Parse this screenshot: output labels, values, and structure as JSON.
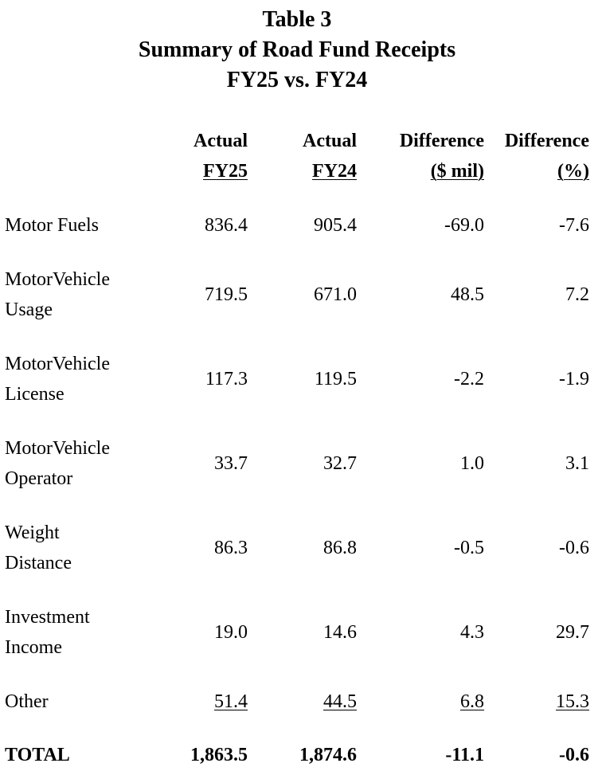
{
  "title": {
    "line1": "Table 3",
    "line2": "Summary of Road Fund Receipts",
    "line3": "FY25 vs. FY24"
  },
  "columns": [
    {
      "line1": "Actual",
      "line2": "FY25"
    },
    {
      "line1": "Actual",
      "line2": "FY24"
    },
    {
      "line1": "Difference",
      "line2": "($ mil)"
    },
    {
      "line1": "Difference",
      "line2": "(%)"
    }
  ],
  "rows": [
    {
      "label": [
        "Motor Fuels"
      ],
      "values": [
        "836.4",
        "905.4",
        "-69.0",
        "-7.6"
      ]
    },
    {
      "label": [
        "MotorVehicle",
        "Usage"
      ],
      "values": [
        "719.5",
        "671.0",
        "48.5",
        "7.2"
      ]
    },
    {
      "label": [
        "MotorVehicle",
        "License"
      ],
      "values": [
        "117.3",
        "119.5",
        "-2.2",
        "-1.9"
      ]
    },
    {
      "label": [
        "MotorVehicle",
        "Operator"
      ],
      "values": [
        "33.7",
        "32.7",
        "1.0",
        "3.1"
      ]
    },
    {
      "label": [
        "Weight",
        "Distance"
      ],
      "values": [
        "86.3",
        "86.8",
        "-0.5",
        "-0.6"
      ]
    },
    {
      "label": [
        "Investment",
        "Income"
      ],
      "values": [
        "19.0",
        "14.6",
        "4.3",
        "29.7"
      ]
    },
    {
      "label": [
        "Other"
      ],
      "values": [
        "51.4",
        "44.5",
        "6.8",
        "15.3"
      ]
    }
  ],
  "total": {
    "label": "TOTAL",
    "values": [
      "1,863.5",
      "1,874.6",
      "-11.1",
      "-0.6"
    ]
  }
}
